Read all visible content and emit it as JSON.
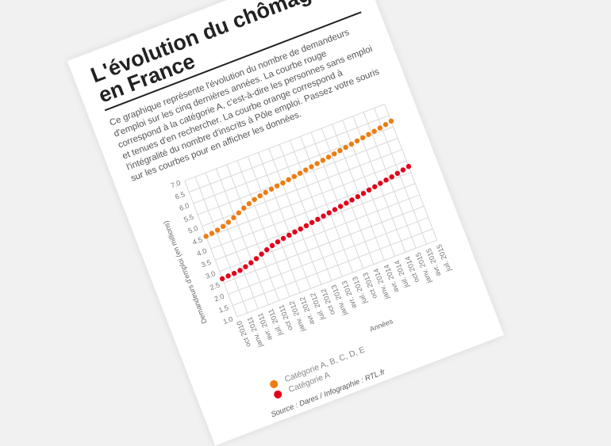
{
  "article": {
    "title": "L'évolution du chômage en France",
    "intro": "Ce graphique représente l'évolution du nombre de demandeurs d'emploi sur les cinq dernières années. La courbe rouge correspond à la catégorie A, c'est-à-dire les personnes sans emploi et tenues d'en rechercher. La courbe orange correspond à l'intégralité du nombre d'inscrits à Pôle emploi. Passez votre souris sur les courbes pour en afficher les données.",
    "source": "Source : Dares / Infographie : RTL.fr"
  },
  "colors": {
    "catA": "#e2001a",
    "all": "#ee7d10",
    "grid": "#d8d8d8"
  },
  "chart_data": {
    "type": "scatter",
    "ylabel": "Demandeurs d'emploi (en millions)",
    "xlabel": "Années",
    "ylim": [
      1.0,
      7.0
    ],
    "yticks": [
      1.0,
      1.5,
      2.0,
      2.5,
      3.0,
      3.5,
      4.0,
      4.5,
      5.0,
      5.5,
      6.0,
      6.5,
      7.0
    ],
    "xticks": [
      "oct 2010",
      "janv. 2011",
      "avr. 2011",
      "juil. 2011",
      "oct 2011",
      "janv. 2012",
      "avr. 2012",
      "juil. 2012",
      "oct 2012",
      "janv. 2013",
      "avr. 2013",
      "juil. 2013",
      "oct 2013",
      "janv. 2014",
      "avr. 2014",
      "juil. 2014",
      "oct 2014",
      "janv. 2015",
      "avr. 2015",
      "juil. 2015"
    ],
    "series": [
      {
        "name": "Catégorie A",
        "values": [
          2.68,
          2.7,
          2.71,
          2.74,
          2.8,
          2.87,
          2.95,
          3.05,
          3.14,
          3.22,
          3.28,
          3.33,
          3.37,
          3.41,
          3.44,
          3.48,
          3.52,
          3.56,
          3.6,
          3.64,
          3.68,
          3.72,
          3.76,
          3.8,
          3.84,
          3.88,
          3.93,
          3.97,
          4.02,
          4.06,
          4.1,
          4.15,
          4.2,
          4.25
        ]
      },
      {
        "name": "Catégorie A, B, C, D, E",
        "values": [
          4.55,
          4.58,
          4.62,
          4.68,
          4.76,
          4.86,
          4.97,
          5.08,
          5.17,
          5.25,
          5.31,
          5.36,
          5.4,
          5.44,
          5.47,
          5.51,
          5.55,
          5.59,
          5.63,
          5.67,
          5.71,
          5.75,
          5.79,
          5.83,
          5.87,
          5.91,
          5.95,
          5.99,
          6.03,
          6.07,
          6.11,
          6.15,
          6.2,
          6.25
        ]
      }
    ]
  }
}
